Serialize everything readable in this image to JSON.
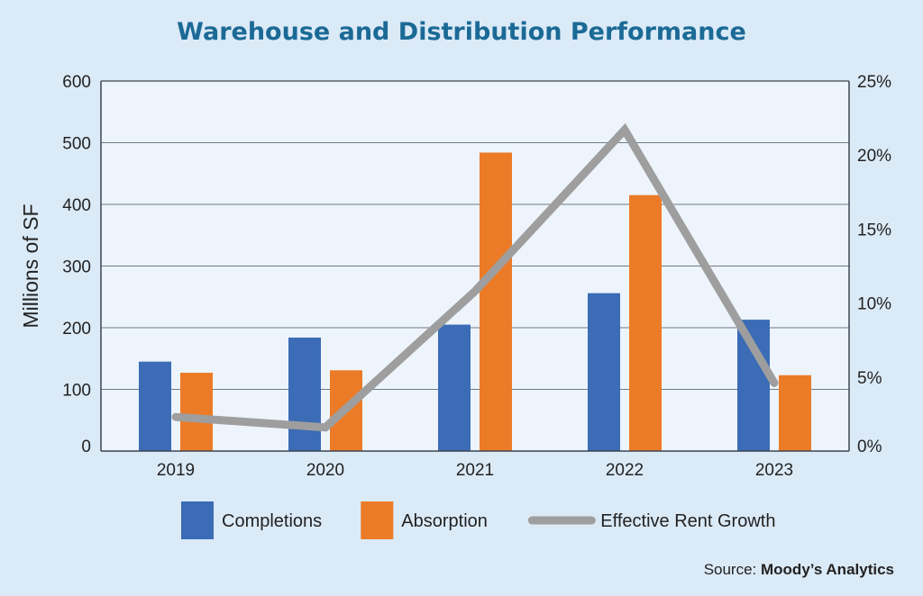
{
  "page": {
    "background": "#dbeaf7"
  },
  "chart_data": {
    "type": "bar",
    "title": "Warehouse and Distribution Performance",
    "title_color": "#1b6a96",
    "categories": [
      "2019",
      "2020",
      "2021",
      "2022",
      "2023"
    ],
    "ylabel": "Millions of SF",
    "ylim": [
      0,
      600
    ],
    "yticks": [
      "0",
      "100",
      "200",
      "300",
      "400",
      "500",
      "600"
    ],
    "y2lim": [
      0,
      25
    ],
    "y2ticks": [
      "0%",
      "5%",
      "10%",
      "15%",
      "20%",
      "25%"
    ],
    "grid": true,
    "legend_position": "bottom",
    "series": [
      {
        "name": "Completions",
        "type": "bar",
        "axis": "left",
        "color": "#3b6cb5",
        "values": [
          145,
          184,
          205,
          256,
          213
        ]
      },
      {
        "name": "Absorption",
        "type": "bar",
        "axis": "left",
        "color": "#ec7b27",
        "values": [
          127,
          131,
          484,
          415,
          123
        ]
      },
      {
        "name": "Effective Rent Growth",
        "type": "line",
        "axis": "right",
        "unit": "%",
        "color": "#9e9e9e",
        "values": [
          2.3,
          1.6,
          10.8,
          21.7,
          4.6
        ]
      }
    ]
  },
  "source": {
    "prefix": "Source: ",
    "name": "Moody’s Analytics"
  }
}
